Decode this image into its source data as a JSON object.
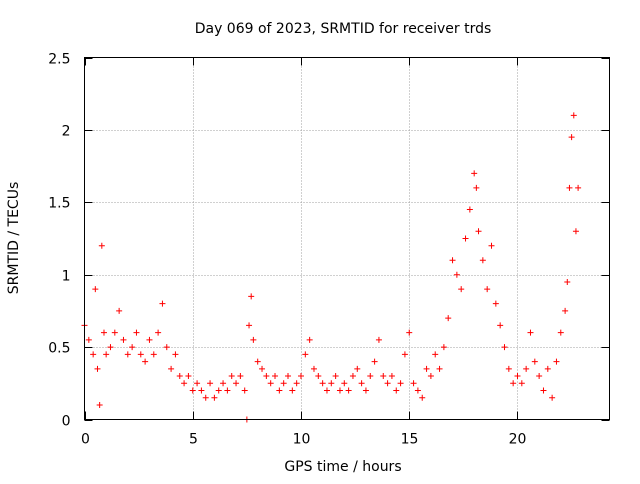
{
  "chart_data": {
    "type": "scatter",
    "title": "Day 069 of 2023, SRMTID for receiver trds",
    "xlabel": "GPS time / hours",
    "ylabel": "SRMTID / TECUs",
    "xlim": [
      0,
      24.25
    ],
    "ylim": [
      0,
      2.5
    ],
    "xticks": [
      0,
      5,
      10,
      15,
      20
    ],
    "xtick_labels": [
      "0",
      "5",
      "10",
      "15",
      "20"
    ],
    "yticks": [
      0,
      0.5,
      1,
      1.5,
      2,
      2.5
    ],
    "ytick_labels": [
      "0",
      "0.5",
      "1",
      "1.5",
      "2",
      "2.5"
    ],
    "grid": true,
    "marker": "+",
    "marker_color": "#ff0000",
    "series": [
      {
        "name": "SRMTID",
        "x": [
          0.0,
          0.2,
          0.4,
          0.5,
          0.6,
          0.7,
          0.8,
          0.9,
          1.0,
          1.2,
          1.4,
          1.6,
          1.8,
          2.0,
          2.2,
          2.4,
          2.6,
          2.8,
          3.0,
          3.2,
          3.4,
          3.6,
          3.8,
          4.0,
          4.2,
          4.4,
          4.6,
          4.8,
          5.0,
          5.2,
          5.4,
          5.6,
          5.8,
          6.0,
          6.2,
          6.4,
          6.6,
          6.8,
          7.0,
          7.2,
          7.4,
          7.5,
          7.6,
          7.7,
          7.8,
          8.0,
          8.2,
          8.4,
          8.6,
          8.8,
          9.0,
          9.2,
          9.4,
          9.6,
          9.8,
          10.0,
          10.2,
          10.4,
          10.6,
          10.8,
          11.0,
          11.2,
          11.4,
          11.6,
          11.8,
          12.0,
          12.2,
          12.4,
          12.6,
          12.8,
          13.0,
          13.2,
          13.4,
          13.6,
          13.8,
          14.0,
          14.2,
          14.4,
          14.6,
          14.8,
          15.0,
          15.2,
          15.4,
          15.6,
          15.8,
          16.0,
          16.2,
          16.4,
          16.6,
          16.8,
          17.0,
          17.2,
          17.4,
          17.6,
          17.8,
          18.0,
          18.1,
          18.2,
          18.4,
          18.6,
          18.8,
          19.0,
          19.2,
          19.4,
          19.6,
          19.8,
          20.0,
          20.2,
          20.4,
          20.6,
          20.8,
          21.0,
          21.2,
          21.4,
          21.6,
          21.8,
          22.0,
          22.2,
          22.3,
          22.4,
          22.5,
          22.6,
          22.7,
          22.8
        ],
        "y": [
          0.65,
          0.55,
          0.45,
          0.9,
          0.35,
          0.1,
          1.2,
          0.6,
          0.45,
          0.5,
          0.6,
          0.75,
          0.55,
          0.45,
          0.5,
          0.6,
          0.45,
          0.4,
          0.55,
          0.45,
          0.6,
          0.8,
          0.5,
          0.35,
          0.45,
          0.3,
          0.25,
          0.3,
          0.2,
          0.25,
          0.2,
          0.15,
          0.25,
          0.15,
          0.2,
          0.25,
          0.2,
          0.3,
          0.25,
          0.3,
          0.2,
          0.0,
          0.65,
          0.85,
          0.55,
          0.4,
          0.35,
          0.3,
          0.25,
          0.3,
          0.2,
          0.25,
          0.3,
          0.2,
          0.25,
          0.3,
          0.45,
          0.55,
          0.35,
          0.3,
          0.25,
          0.2,
          0.25,
          0.3,
          0.2,
          0.25,
          0.2,
          0.3,
          0.35,
          0.25,
          0.2,
          0.3,
          0.4,
          0.55,
          0.3,
          0.25,
          0.3,
          0.2,
          0.25,
          0.45,
          0.6,
          0.25,
          0.2,
          0.15,
          0.35,
          0.3,
          0.45,
          0.35,
          0.5,
          0.7,
          1.1,
          1.0,
          0.9,
          1.25,
          1.45,
          1.7,
          1.6,
          1.3,
          1.1,
          0.9,
          1.2,
          0.8,
          0.65,
          0.5,
          0.35,
          0.25,
          0.3,
          0.25,
          0.35,
          0.6,
          0.4,
          0.3,
          0.2,
          0.35,
          0.15,
          0.4,
          0.6,
          0.75,
          0.95,
          1.6,
          1.95,
          2.1,
          1.3,
          1.6
        ]
      }
    ]
  }
}
